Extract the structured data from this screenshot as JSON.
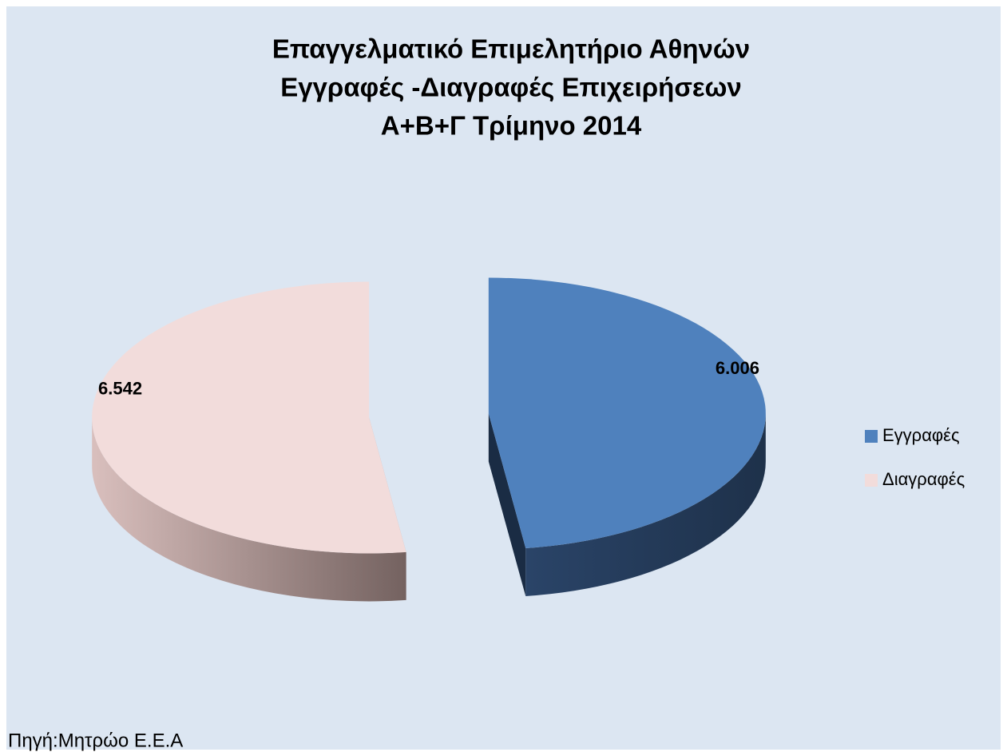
{
  "chart_data": {
    "type": "pie",
    "title": [
      "Επαγγελματικό Επιμελητήριο Αθηνών",
      "Εγγραφές -Διαγραφές Επιχειρήσεων",
      "Α+Β+Γ Τρίμηνο 2014"
    ],
    "categories": [
      "Εγγραφές",
      "Διαγραφές"
    ],
    "values": [
      6006,
      6542
    ],
    "value_labels": [
      "6.006",
      "6.542"
    ],
    "colors": [
      "#4f81bd",
      "#f2dcdb"
    ],
    "legend": "right",
    "source": "Πηγή:Μητρώο Ε.Ε.Α"
  }
}
